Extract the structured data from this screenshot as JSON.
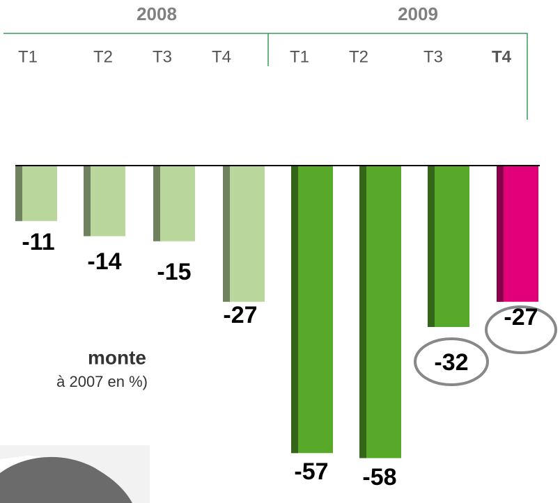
{
  "chart_data": {
    "type": "bar",
    "years": [
      "2008",
      "2009"
    ],
    "categories": [
      "T1",
      "T2",
      "T3",
      "T4",
      "T1",
      "T2",
      "T3",
      "T4"
    ],
    "values": [
      -11,
      -14,
      -15,
      -27,
      -57,
      -58,
      -32,
      -27
    ],
    "colors": [
      "#b9d79c",
      "#b9d79c",
      "#b9d79c",
      "#b9d79c",
      "#58a92a",
      "#58a92a",
      "#58a92a",
      "#e2007a"
    ],
    "ylim": [
      -60,
      0
    ],
    "subtitle": "monte",
    "note": "à 2007 en %)"
  }
}
